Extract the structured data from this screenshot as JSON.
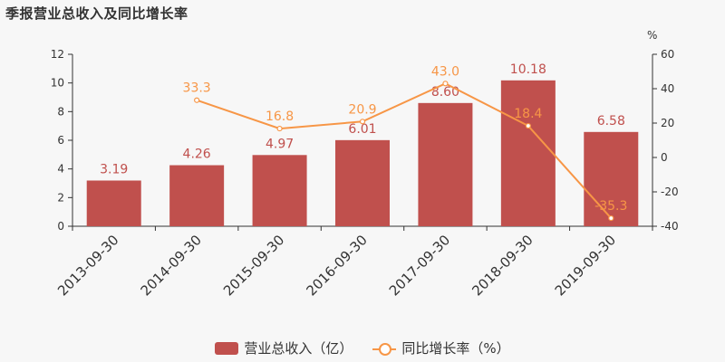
{
  "title": "季报营业总收入及同比增长率",
  "chart_data": {
    "type": "bar",
    "categories": [
      "2013-09-30",
      "2014-09-30",
      "2015-09-30",
      "2016-09-30",
      "2017-09-30",
      "2018-09-30",
      "2019-09-30"
    ],
    "series": [
      {
        "name": "营业总收入（亿）",
        "type": "bar",
        "axis": "left",
        "color": "#c0504d",
        "values": [
          3.19,
          4.26,
          4.97,
          6.01,
          8.6,
          10.18,
          6.58
        ],
        "labels": [
          "3.19",
          "4.26",
          "4.97",
          "6.01",
          "8.60",
          "10.18",
          "6.58"
        ]
      },
      {
        "name": "同比增长率（%）",
        "type": "line",
        "axis": "right",
        "color": "#f79646",
        "values": [
          null,
          33.3,
          16.8,
          20.9,
          43.0,
          18.4,
          -35.3
        ],
        "labels": [
          "",
          "33.3",
          "16.8",
          "20.9",
          "43.0",
          "18.4",
          "-35.3"
        ]
      }
    ],
    "y_left": {
      "min": 0,
      "max": 12,
      "ticks": [
        "0",
        "2",
        "4",
        "6",
        "8",
        "10",
        "12"
      ]
    },
    "y_right": {
      "min": -40,
      "max": 60,
      "ticks": [
        "-40",
        "-20",
        "0",
        "20",
        "40",
        "60"
      ],
      "unit": "%"
    },
    "grid": false,
    "legend": "bottom"
  }
}
